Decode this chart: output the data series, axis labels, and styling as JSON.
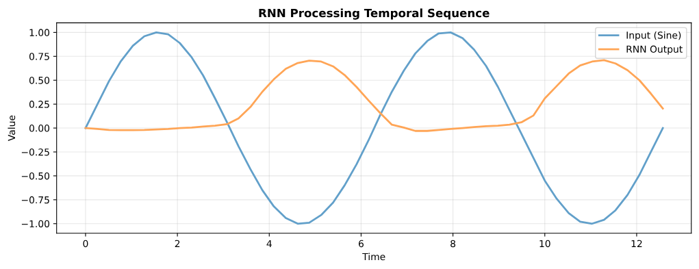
{
  "chart_data": {
    "type": "line",
    "title": "RNN Processing Temporal Sequence",
    "xlabel": "Time",
    "ylabel": "Value",
    "x": [
      0,
      0.26,
      0.51,
      0.77,
      1.03,
      1.28,
      1.54,
      1.8,
      2.05,
      2.31,
      2.56,
      2.82,
      3.08,
      3.33,
      3.59,
      3.85,
      4.1,
      4.36,
      4.62,
      4.87,
      5.13,
      5.39,
      5.64,
      5.9,
      6.16,
      6.41,
      6.67,
      6.93,
      7.18,
      7.44,
      7.69,
      7.95,
      8.21,
      8.46,
      8.72,
      8.98,
      9.23,
      9.49,
      9.75,
      10.0,
      10.26,
      10.52,
      10.77,
      11.03,
      11.29,
      11.54,
      11.8,
      12.06,
      12.31,
      12.57
    ],
    "series": [
      {
        "name": "Input (Sine)",
        "color": "#62a0ca",
        "values": [
          0,
          0.25,
          0.49,
          0.7,
          0.86,
          0.96,
          1.0,
          0.98,
          0.89,
          0.74,
          0.55,
          0.31,
          0.06,
          -0.19,
          -0.43,
          -0.65,
          -0.82,
          -0.94,
          -1.0,
          -0.99,
          -0.91,
          -0.78,
          -0.6,
          -0.38,
          -0.13,
          0.13,
          0.38,
          0.6,
          0.78,
          0.91,
          0.99,
          1.0,
          0.94,
          0.82,
          0.65,
          0.43,
          0.19,
          -0.06,
          -0.31,
          -0.55,
          -0.74,
          -0.89,
          -0.98,
          -1.0,
          -0.96,
          -0.86,
          -0.7,
          -0.49,
          -0.25,
          0
        ]
      },
      {
        "name": "RNN Output",
        "color": "#ffa556",
        "values": [
          0,
          -0.01,
          -0.02,
          -0.022,
          -0.022,
          -0.02,
          -0.015,
          -0.01,
          0,
          0.005,
          0.015,
          0.025,
          0.04,
          0.1,
          0.22,
          0.38,
          0.51,
          0.62,
          0.68,
          0.705,
          0.695,
          0.645,
          0.555,
          0.43,
          0.29,
          0.16,
          0.035,
          0.005,
          -0.03,
          -0.03,
          -0.02,
          -0.01,
          0,
          0.01,
          0.02,
          0.025,
          0.035,
          0.06,
          0.13,
          0.31,
          0.44,
          0.57,
          0.655,
          0.695,
          0.71,
          0.675,
          0.605,
          0.5,
          0.36,
          0.205
        ]
      }
    ],
    "xlim": [
      -0.63,
      13.19
    ],
    "ylim": [
      -1.1,
      1.1
    ],
    "xticks": [
      0,
      2,
      4,
      6,
      8,
      10,
      12
    ],
    "yticks": [
      {
        "value": -1,
        "label": "−1.00"
      },
      {
        "value": -0.75,
        "label": "−0.75"
      },
      {
        "value": -0.5,
        "label": "−0.50"
      },
      {
        "value": -0.25,
        "label": "−0.25"
      },
      {
        "value": 0,
        "label": "0.00"
      },
      {
        "value": 0.25,
        "label": "0.25"
      },
      {
        "value": 0.5,
        "label": "0.50"
      },
      {
        "value": 0.75,
        "label": "0.75"
      },
      {
        "value": 1,
        "label": "1.00"
      }
    ],
    "grid": true,
    "legend": "top right",
    "marker": "none",
    "line_style": "solid"
  }
}
